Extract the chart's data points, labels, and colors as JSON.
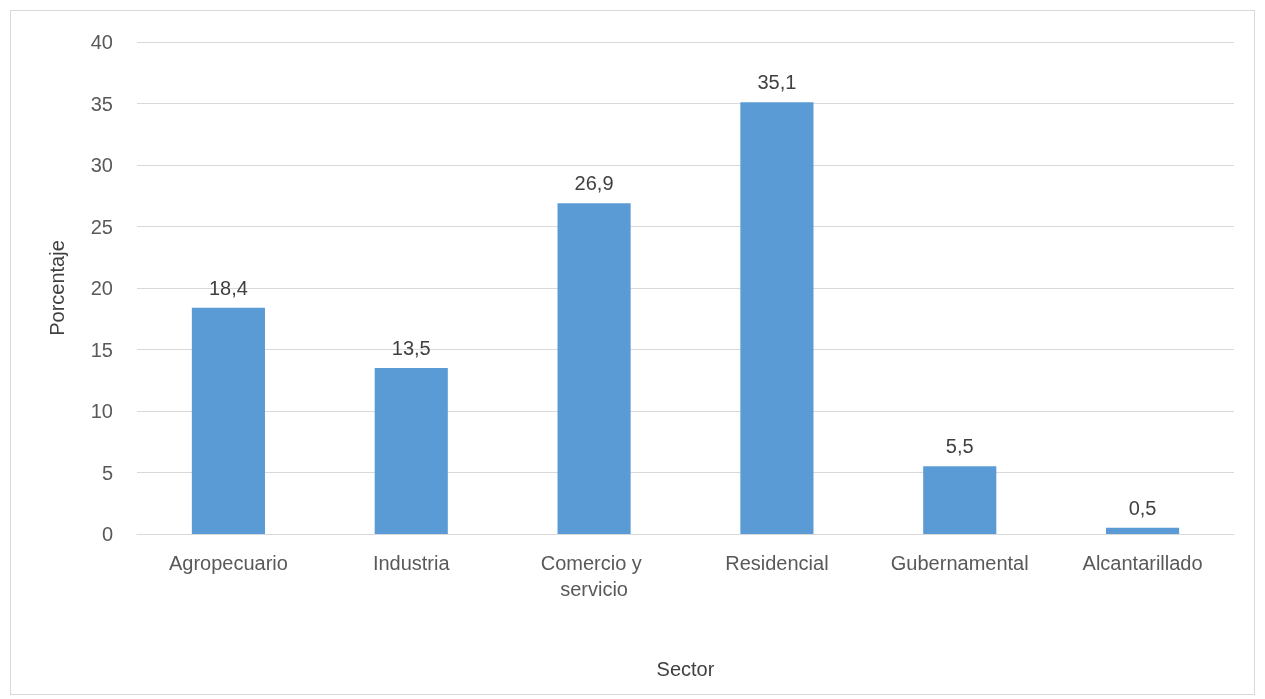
{
  "chart_data": {
    "type": "bar",
    "xlabel": "Sector",
    "ylabel": "Porcentaje",
    "categories": [
      "Agropecuario",
      "Industria",
      "Comercio y servicio",
      "Residencial",
      "Gubernamental",
      "Alcantarillado"
    ],
    "values": [
      18.4,
      13.5,
      26.9,
      35.1,
      5.5,
      0.5
    ],
    "value_labels": [
      "18,4",
      "13,5",
      "26,9",
      "35,1",
      "5,5",
      "0,5"
    ],
    "color": "#5b9bd5",
    "ylim": [
      0,
      40
    ],
    "yticks": [
      0,
      5,
      10,
      15,
      20,
      25,
      30,
      35,
      40
    ],
    "grid": "y"
  }
}
